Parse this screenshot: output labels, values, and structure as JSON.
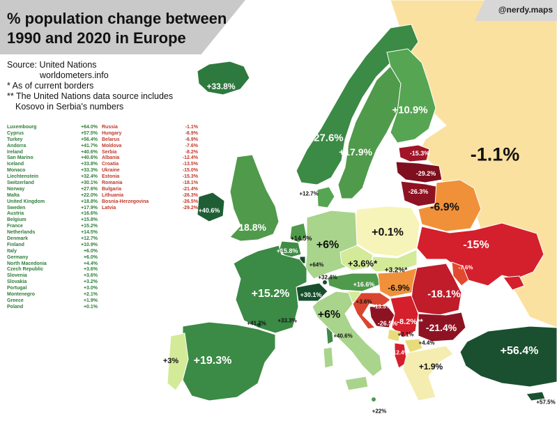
{
  "title_lines": [
    "% population change between",
    "1990 and 2020 in Europe"
  ],
  "credit": "@nerdy.maps",
  "source_lines": [
    "Source:  United Nations",
    "worldometers.info",
    "* As of current borders",
    "** The United Nations data source includes",
    "Kosovo in Serbia's numbers"
  ],
  "legend_positive": [
    {
      "country": "Luxembourg",
      "value": "+64.0%"
    },
    {
      "country": "Cyprus",
      "value": "+57.5%"
    },
    {
      "country": "Turkey",
      "value": "+56.4%"
    },
    {
      "country": "Andorra",
      "value": "+41.7%"
    },
    {
      "country": "Ireland",
      "value": "+40.6%"
    },
    {
      "country": "San Marino",
      "value": "+40.6%"
    },
    {
      "country": "Iceland",
      "value": "+33.8%"
    },
    {
      "country": "Monaco",
      "value": "+33.3%"
    },
    {
      "country": "Liechtenstein",
      "value": "+32.4%"
    },
    {
      "country": "Switzerland",
      "value": "+30.1%"
    },
    {
      "country": "Norway",
      "value": "+27.6%"
    },
    {
      "country": "Malta",
      "value": "+22.0%"
    },
    {
      "country": "United Kingdom",
      "value": "+18.8%"
    },
    {
      "country": "Sweden",
      "value": "+17.9%"
    },
    {
      "country": "Austria",
      "value": "+16.6%"
    },
    {
      "country": "Belgium",
      "value": "+15.8%"
    },
    {
      "country": "France",
      "value": "+15.2%"
    },
    {
      "country": "Netherlands",
      "value": "+14.5%"
    },
    {
      "country": "Denmark",
      "value": "+12.7%"
    },
    {
      "country": "Finland",
      "value": "+10.9%"
    },
    {
      "country": "Italy",
      "value": "+6.0%"
    },
    {
      "country": "Germany",
      "value": "+6.0%"
    },
    {
      "country": "North Macedonia",
      "value": "+4.4%"
    },
    {
      "country": "Czech Republic",
      "value": "+3.6%"
    },
    {
      "country": "Slovenia",
      "value": "+3.6%"
    },
    {
      "country": "Slovakia",
      "value": "+3.2%"
    },
    {
      "country": "Portugal",
      "value": "+3.0%"
    },
    {
      "country": "Montenegro",
      "value": "+2.1%"
    },
    {
      "country": "Greece",
      "value": "+1.9%"
    },
    {
      "country": "Poland",
      "value": "+0.1%"
    }
  ],
  "legend_negative": [
    {
      "country": "Russia",
      "value": "-1.1%"
    },
    {
      "country": "Hungary",
      "value": "-6.9%"
    },
    {
      "country": "Belarus",
      "value": "-6.9%"
    },
    {
      "country": "Moldova",
      "value": "-7.6%"
    },
    {
      "country": "Serbia",
      "value": "-8.2%"
    },
    {
      "country": "Albania",
      "value": "-12.4%"
    },
    {
      "country": "Croatia",
      "value": "-13.5%"
    },
    {
      "country": "Ukraine",
      "value": "-15.0%"
    },
    {
      "country": "Estonia",
      "value": "-15.3%"
    },
    {
      "country": "Romania",
      "value": "-18.1%"
    },
    {
      "country": "Bulgaria",
      "value": "-21.4%"
    },
    {
      "country": "Lithuania",
      "value": "-26.3%"
    },
    {
      "country": "Bosnia-Herzegovina",
      "value": "-26.5%"
    },
    {
      "country": "Latvia",
      "value": "-29.2%"
    }
  ],
  "map_labels": {
    "iceland": "+33.8%",
    "finland": "+10.9%",
    "norway": "+27.6%",
    "sweden": "+17.9%",
    "russia": "-1.1%",
    "estonia": "-15.3%",
    "latvia": "-29.2%",
    "lithuania": "-26.3%",
    "denmark": "+12.7%",
    "belarus": "-6.9%",
    "ireland": "+40.6%",
    "uk": "+18.8%",
    "netherlands": "+14.5%",
    "belgium": "+15.8%",
    "luxembourg": "+64%",
    "germany": "+6%",
    "poland": "+0.1%",
    "czech": "+3.6%*",
    "slovakia": "+3.2%*",
    "ukraine": "-15%",
    "moldova": "-7.6%",
    "liechtenstein": "+32.4%",
    "switzerland": "+30.1%",
    "austria": "+16.6%",
    "hungary": "-6.9%",
    "romania": "-18.1%",
    "slovenia": "+3.6%",
    "croatia": "-13.5%",
    "france": "+15.2%",
    "andorra": "+41.7%",
    "monaco": "+33.3%",
    "italy": "+6%",
    "san_marino": "+40.6%",
    "bosnia": "-26.5%",
    "serbia": "-8.2%**",
    "bulgaria": "-21.4%",
    "montenegro": "+2.1%",
    "north_macedonia": "+4.4%",
    "albania": "-12.4%",
    "greece": "+1.9%",
    "portugal": "+3%",
    "spain": "+19.3%",
    "turkey": "+56.4%",
    "malta": "+22%",
    "cyprus": "+57.5%"
  },
  "colors": {
    "dark_green": "#1e5e33",
    "green": "#3b8a45",
    "mid_green": "#5fa552",
    "light_green": "#a9d48c",
    "pale_green": "#d3ea98",
    "pale_yellow": "#f7f4b9",
    "russia": "#fbe1a0",
    "orange": "#f0913a",
    "red": "#d41f2c",
    "dark_red": "#8e1322",
    "sea": "#ffffff"
  }
}
